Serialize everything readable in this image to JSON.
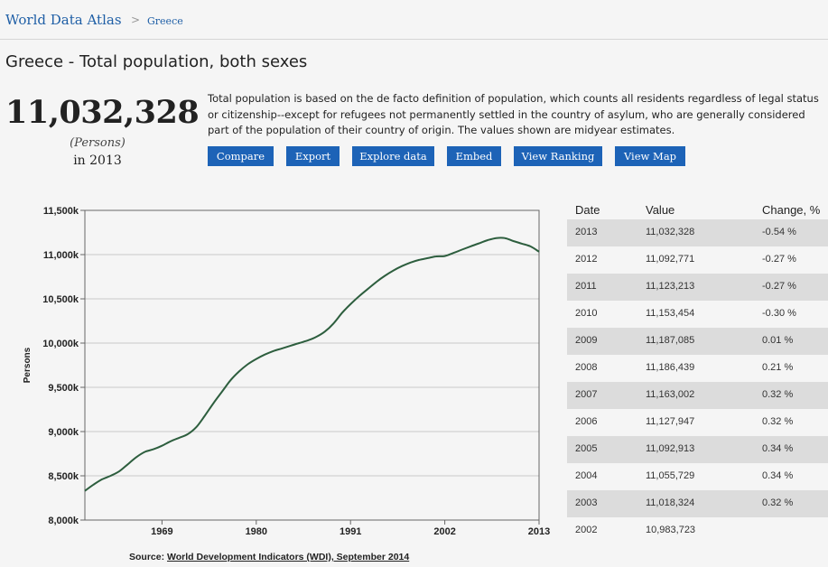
{
  "header": {
    "brand": "World Data Atlas",
    "breadcrumb_sep": ">",
    "breadcrumb": "Greece"
  },
  "title": "Greece - Total population, both sexes",
  "summary": {
    "value": "11,032,328",
    "unit": "(Persons)",
    "year": "in 2013"
  },
  "description": "Total population is based on the de facto definition of population, which counts all residents regardless of legal status or citizenship--except for refugees not permanently settled in the country of asylum, who are generally considered part of the population of their country of origin. The values shown are midyear estimates.",
  "buttons": {
    "compare": "Compare",
    "export": "Export",
    "explore": "Explore data",
    "embed": "Embed",
    "ranking": "View Ranking",
    "map": "View Map"
  },
  "source": {
    "label": "Source:",
    "link": "World Development Indicators (WDI), September 2014"
  },
  "table": {
    "headers": {
      "date": "Date",
      "value": "Value",
      "change": "Change, %"
    },
    "rows": [
      {
        "date": "2013",
        "value": "11,032,328",
        "change": "-0.54 %"
      },
      {
        "date": "2012",
        "value": "11,092,771",
        "change": "-0.27 %"
      },
      {
        "date": "2011",
        "value": "11,123,213",
        "change": "-0.27 %"
      },
      {
        "date": "2010",
        "value": "11,153,454",
        "change": "-0.30 %"
      },
      {
        "date": "2009",
        "value": "11,187,085",
        "change": "0.01 %"
      },
      {
        "date": "2008",
        "value": "11,186,439",
        "change": "0.21 %"
      },
      {
        "date": "2007",
        "value": "11,163,002",
        "change": "0.32 %"
      },
      {
        "date": "2006",
        "value": "11,127,947",
        "change": "0.32 %"
      },
      {
        "date": "2005",
        "value": "11,092,913",
        "change": "0.34 %"
      },
      {
        "date": "2004",
        "value": "11,055,729",
        "change": "0.34 %"
      },
      {
        "date": "2003",
        "value": "11,018,324",
        "change": "0.32 %"
      },
      {
        "date": "2002",
        "value": "10,983,723",
        "change": ""
      }
    ]
  },
  "colors": {
    "line": "#2d5e3e",
    "grid": "#c9c9c9",
    "button": "#1d63b7",
    "brand": "#1f5fa6"
  },
  "chart_data": {
    "type": "line",
    "title": "",
    "xlabel": "",
    "ylabel": "Persons",
    "xlim": [
      1960,
      2013
    ],
    "ylim": [
      8000000,
      11500000
    ],
    "x_ticks": [
      1969,
      1980,
      1991,
      2002,
      2013
    ],
    "x_tick_labels": [
      "1969",
      "1980",
      "1991",
      "2002",
      "2013"
    ],
    "y_ticks": [
      8000000,
      8500000,
      9000000,
      9500000,
      10000000,
      10500000,
      11000000,
      11500000
    ],
    "y_tick_labels": [
      "8,000k",
      "8,500k",
      "9,000k",
      "9,500k",
      "10,000k",
      "10,500k",
      "11,000k",
      "11,500k"
    ],
    "grid": true,
    "series": [
      {
        "name": "Total population, both sexes",
        "x": [
          1960,
          1961,
          1962,
          1963,
          1964,
          1965,
          1966,
          1967,
          1968,
          1969,
          1970,
          1971,
          1972,
          1973,
          1974,
          1975,
          1976,
          1977,
          1978,
          1979,
          1980,
          1981,
          1982,
          1983,
          1984,
          1985,
          1986,
          1987,
          1988,
          1989,
          1990,
          1991,
          1992,
          1993,
          1994,
          1995,
          1996,
          1997,
          1998,
          1999,
          2000,
          2001,
          2002,
          2003,
          2004,
          2005,
          2006,
          2007,
          2008,
          2009,
          2010,
          2011,
          2012,
          2013
        ],
        "y": [
          8330000,
          8400000,
          8460000,
          8500000,
          8550000,
          8630000,
          8710000,
          8770000,
          8800000,
          8840000,
          8890000,
          8930000,
          8970000,
          9050000,
          9180000,
          9320000,
          9450000,
          9580000,
          9680000,
          9760000,
          9820000,
          9870000,
          9910000,
          9940000,
          9970000,
          10000000,
          10030000,
          10070000,
          10130000,
          10220000,
          10340000,
          10440000,
          10530000,
          10610000,
          10690000,
          10760000,
          10820000,
          10870000,
          10910000,
          10940000,
          10960000,
          10980000,
          10983723,
          11018324,
          11055729,
          11092913,
          11127947,
          11163002,
          11186439,
          11187085,
          11153454,
          11123213,
          11092771,
          11032328
        ]
      }
    ]
  }
}
